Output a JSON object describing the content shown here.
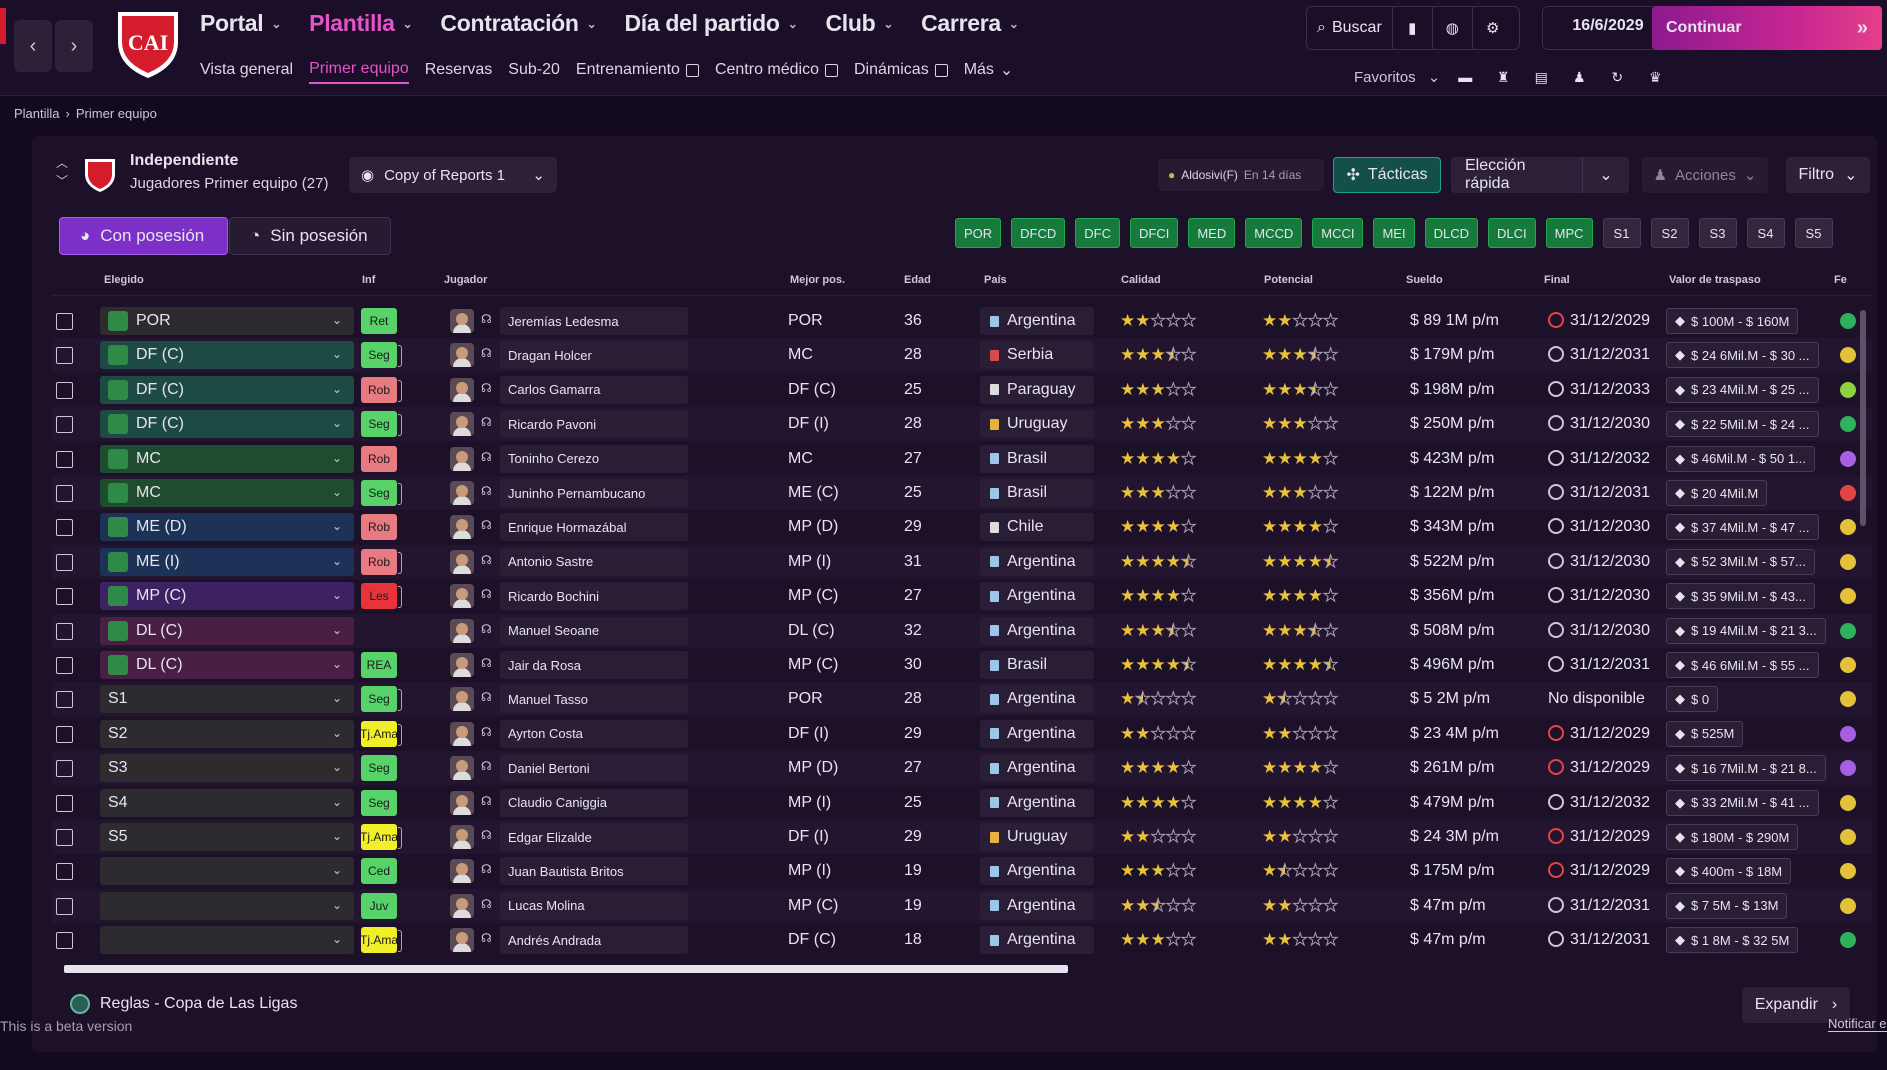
{
  "nav": {
    "main": [
      {
        "label": "Portal",
        "active": false
      },
      {
        "label": "Plantilla",
        "active": true
      },
      {
        "label": "Contratación",
        "active": false
      },
      {
        "label": "Día del partido",
        "active": false
      },
      {
        "label": "Club",
        "active": false
      },
      {
        "label": "Carrera",
        "active": false
      }
    ],
    "sub": [
      {
        "label": "Vista general",
        "active": false,
        "external": false
      },
      {
        "label": "Primer equipo",
        "active": true,
        "external": false
      },
      {
        "label": "Reservas",
        "active": false,
        "external": false
      },
      {
        "label": "Sub-20",
        "active": false,
        "external": false
      },
      {
        "label": "Entrenamiento",
        "active": false,
        "external": true
      },
      {
        "label": "Centro médico",
        "active": false,
        "external": true
      },
      {
        "label": "Dinámicas",
        "active": false,
        "external": true
      },
      {
        "label": "Más",
        "active": false,
        "external": false
      }
    ],
    "search_label": "Buscar",
    "date": "16/6/2029",
    "continue_label": "Continuar",
    "favorites_label": "Favoritos"
  },
  "breadcrumb": [
    "Plantilla",
    "Primer equipo"
  ],
  "team": {
    "name": "Independiente",
    "subtitle": "Jugadores Primer equipo (27)",
    "view": "Copy of Reports 1"
  },
  "toolbar": {
    "alert_name": "Aldosivi(F)",
    "alert_when": "En 14 días",
    "tactics_label": "Tácticas",
    "quick_pick_label": "Elección rápida",
    "actions_label": "Acciones",
    "filter_label": "Filtro",
    "with_possession": "Con posesión",
    "without_possession": "Sin posesión"
  },
  "position_chips": [
    "POR",
    "DFCD",
    "DFC",
    "DFCI",
    "MED",
    "MCCD",
    "MCCI",
    "MEI",
    "DLCD",
    "DLCI",
    "MPC"
  ],
  "sub_chips": [
    "S1",
    "S2",
    "S3",
    "S4",
    "S5"
  ],
  "columns": [
    "Elegido",
    "Inf",
    "Jugador",
    "Mejor pos.",
    "Edad",
    "País",
    "Calidad",
    "Potencial",
    "Sueldo",
    "Final",
    "Valor de traspaso",
    "Fe"
  ],
  "rows": [
    {
      "sel": "POR",
      "selcolor": "#2d2a30",
      "pin": true,
      "inf": "Ret",
      "infbg": "#57d36a",
      "tail": false,
      "name": "Jeremías Ledesma",
      "best": "POR",
      "age": "36",
      "country": "Argentina",
      "flag": "#9cc6ea",
      "q": 2,
      "p": 2,
      "wage": "$ 89 1M p/m",
      "red": true,
      "end": "31/12/2029",
      "value": "$ 100M - $ 160M",
      "mood": "#2fb05a"
    },
    {
      "sel": "DF (C)",
      "selcolor": "#1d4a44",
      "pin": true,
      "inf": "Seg",
      "infbg": "#57d36a",
      "tail": true,
      "name": "Dragan Holcer",
      "best": "MC",
      "age": "28",
      "country": "Serbia",
      "flag": "#d44b4b",
      "q": 3.5,
      "p": 3.5,
      "wage": "$ 179M p/m",
      "red": false,
      "end": "31/12/2031",
      "value": "$ 24 6Mil.M - $ 30 ...",
      "mood": "#e3c23a"
    },
    {
      "sel": "DF (C)",
      "selcolor": "#1d4a44",
      "pin": true,
      "inf": "Rob",
      "infbg": "#e87a82",
      "tail": true,
      "name": "Carlos Gamarra",
      "best": "DF (C)",
      "age": "25",
      "country": "Paraguay",
      "flag": "#dcdcdc",
      "q": 3,
      "p": 3.5,
      "wage": "$ 198M p/m",
      "red": false,
      "end": "31/12/2033",
      "value": "$ 23 4Mil.M - $ 25 ...",
      "mood": "#8ed13f"
    },
    {
      "sel": "DF (C)",
      "selcolor": "#1d4a44",
      "pin": true,
      "inf": "Seg",
      "infbg": "#57d36a",
      "tail": true,
      "name": "Ricardo Pavoni",
      "best": "DF (I)",
      "age": "28",
      "country": "Uruguay",
      "flag": "#e8b23a",
      "q": 3,
      "p": 3,
      "wage": "$ 250M p/m",
      "red": false,
      "end": "31/12/2030",
      "value": "$ 22 5Mil.M - $ 24 ...",
      "mood": "#2fb05a"
    },
    {
      "sel": "MC",
      "selcolor": "#1f4b2f",
      "pin": true,
      "inf": "Rob",
      "infbg": "#e87a82",
      "tail": false,
      "name": "Toninho Cerezo",
      "best": "MC",
      "age": "27",
      "country": "Brasil",
      "flag": "#9cc6ea",
      "q": 4,
      "p": 4,
      "wage": "$ 423M p/m",
      "red": false,
      "end": "31/12/2032",
      "value": "$ 46Mil.M - $ 50 1...",
      "mood": "#a55fe0"
    },
    {
      "sel": "MC",
      "selcolor": "#1f4b2f",
      "pin": true,
      "inf": "Seg",
      "infbg": "#57d36a",
      "tail": true,
      "name": "Juninho Pernambucano",
      "best": "ME (C)",
      "age": "25",
      "country": "Brasil",
      "flag": "#9cc6ea",
      "q": 3,
      "p": 3,
      "wage": "$ 122M p/m",
      "red": false,
      "end": "31/12/2031",
      "value": "$ 20 4Mil.M",
      "mood": "#e24545"
    },
    {
      "sel": "ME (D)",
      "selcolor": "#1c3357",
      "pin": true,
      "inf": "Rob",
      "infbg": "#e87a82",
      "tail": false,
      "name": "Enrique Hormazábal",
      "best": "MP (D)",
      "age": "29",
      "country": "Chile",
      "flag": "#dcdcdc",
      "q": 4,
      "p": 4,
      "wage": "$ 343M p/m",
      "red": false,
      "end": "31/12/2030",
      "value": "$ 37 4Mil.M - $ 47 ...",
      "mood": "#e3c23a"
    },
    {
      "sel": "ME (I)",
      "selcolor": "#1c3357",
      "pin": true,
      "inf": "Rob",
      "infbg": "#e87a82",
      "tail": true,
      "name": "Antonio Sastre",
      "best": "MP (I)",
      "age": "31",
      "country": "Argentina",
      "flag": "#9cc6ea",
      "q": 4.5,
      "p": 4.5,
      "wage": "$ 522M p/m",
      "red": false,
      "end": "31/12/2030",
      "value": "$ 52 3Mil.M - $ 57...",
      "mood": "#e3c23a"
    },
    {
      "sel": "MP (C)",
      "selcolor": "#3c2163",
      "pin": true,
      "inf": "Les",
      "infbg": "#e8333a",
      "tail": true,
      "name": "Ricardo Bochini",
      "best": "MP (C)",
      "age": "27",
      "country": "Argentina",
      "flag": "#9cc6ea",
      "q": 4,
      "p": 4,
      "wage": "$ 356M p/m",
      "red": false,
      "end": "31/12/2030",
      "value": "$ 35 9Mil.M - $ 43...",
      "mood": "#e3c23a"
    },
    {
      "sel": "DL (C)",
      "selcolor": "#4a1f45",
      "pin": true,
      "inf": "",
      "infbg": "",
      "tail": false,
      "name": "Manuel Seoane",
      "best": "DL (C)",
      "age": "32",
      "country": "Argentina",
      "flag": "#9cc6ea",
      "q": 3.5,
      "p": 3.5,
      "wage": "$ 508M p/m",
      "red": false,
      "end": "31/12/2030",
      "value": "$ 19 4Mil.M - $ 21 3...",
      "mood": "#2fb05a"
    },
    {
      "sel": "DL (C)",
      "selcolor": "#4a1f45",
      "pin": true,
      "inf": "REA",
      "infbg": "#57d36a",
      "tail": false,
      "name": "Jair da Rosa",
      "best": "MP (C)",
      "age": "30",
      "country": "Brasil",
      "flag": "#9cc6ea",
      "q": 4.5,
      "p": 4.5,
      "wage": "$ 496M p/m",
      "red": false,
      "end": "31/12/2031",
      "value": "$ 46 6Mil.M - $ 55 ...",
      "mood": "#e3c23a"
    },
    {
      "sel": "S1",
      "selcolor": "#2d2a30",
      "pin": false,
      "inf": "Seg",
      "infbg": "#57d36a",
      "tail": true,
      "name": "Manuel Tasso",
      "best": "POR",
      "age": "28",
      "country": "Argentina",
      "flag": "#9cc6ea",
      "q": 1.5,
      "p": 1.5,
      "wage": "$ 5 2M p/m",
      "red": false,
      "end": "No disponible",
      "nd": true,
      "value": "$ 0",
      "mood": "#e3c23a"
    },
    {
      "sel": "S2",
      "selcolor": "#2d2a30",
      "pin": false,
      "inf": "Tj.Ama",
      "infbg": "#f1ee2a",
      "tail": true,
      "name": "Ayrton Costa",
      "best": "DF (I)",
      "age": "29",
      "country": "Argentina",
      "flag": "#9cc6ea",
      "q": 2,
      "p": 2,
      "wage": "$ 23 4M p/m",
      "red": true,
      "end": "31/12/2029",
      "value": "$ 525M",
      "mood": "#a55fe0"
    },
    {
      "sel": "S3",
      "selcolor": "#2d2a30",
      "pin": false,
      "inf": "Seg",
      "infbg": "#57d36a",
      "tail": false,
      "name": "Daniel Bertoni",
      "best": "MP (D)",
      "age": "27",
      "country": "Argentina",
      "flag": "#9cc6ea",
      "q": 4,
      "p": 4,
      "wage": "$ 261M p/m",
      "red": true,
      "end": "31/12/2029",
      "value": "$ 16 7Mil.M - $ 21 8...",
      "mood": "#a55fe0"
    },
    {
      "sel": "S4",
      "selcolor": "#2d2a30",
      "pin": false,
      "inf": "Seg",
      "infbg": "#57d36a",
      "tail": false,
      "name": "Claudio Caniggia",
      "best": "MP (I)",
      "age": "25",
      "country": "Argentina",
      "flag": "#9cc6ea",
      "q": 4,
      "p": 4,
      "wage": "$ 479M p/m",
      "red": false,
      "end": "31/12/2032",
      "value": "$ 33 2Mil.M - $ 41 ...",
      "mood": "#e3c23a"
    },
    {
      "sel": "S5",
      "selcolor": "#2d2a30",
      "pin": false,
      "inf": "Tj.Ama",
      "infbg": "#f1ee2a",
      "tail": true,
      "name": "Edgar Elizalde",
      "best": "DF (I)",
      "age": "29",
      "country": "Uruguay",
      "flag": "#e8b23a",
      "q": 2,
      "p": 2,
      "wage": "$ 24 3M p/m",
      "red": true,
      "end": "31/12/2029",
      "value": "$ 180M - $ 290M",
      "mood": "#e3c23a"
    },
    {
      "sel": "",
      "selcolor": "#2d2a30",
      "pin": false,
      "inf": "Ced",
      "infbg": "#57d36a",
      "tail": false,
      "name": "Juan Bautista Britos",
      "best": "MP (I)",
      "age": "19",
      "country": "Argentina",
      "flag": "#9cc6ea",
      "q": 3,
      "p": 1.5,
      "wage": "$ 175M p/m",
      "red": true,
      "end": "31/12/2029",
      "value": "$ 400m - $ 18M",
      "mood": "#e3c23a"
    },
    {
      "sel": "",
      "selcolor": "#2d2a30",
      "pin": false,
      "inf": "Juv",
      "infbg": "#57d36a",
      "tail": false,
      "name": "Lucas Molina",
      "best": "MP (C)",
      "age": "19",
      "country": "Argentina",
      "flag": "#9cc6ea",
      "q": 2.5,
      "p": 2,
      "wage": "$ 47m p/m",
      "red": false,
      "end": "31/12/2031",
      "value": "$ 7 5M - $ 13M",
      "mood": "#e3c23a"
    },
    {
      "sel": "",
      "selcolor": "#2d2a30",
      "pin": false,
      "inf": "Tj.Ama",
      "infbg": "#f1ee2a",
      "tail": true,
      "name": "Andrés Andrada",
      "best": "DF (C)",
      "age": "18",
      "country": "Argentina",
      "flag": "#9cc6ea",
      "q": 3,
      "p": 2,
      "wage": "$ 47m p/m",
      "red": false,
      "end": "31/12/2031",
      "value": "$ 1 8M - $ 32 5M",
      "mood": "#2fb05a"
    }
  ],
  "footer": {
    "rules": "Reglas - Copa de Las Ligas",
    "beta": "This is a beta version",
    "expand": "Expandir",
    "notify": "Notificar e"
  }
}
